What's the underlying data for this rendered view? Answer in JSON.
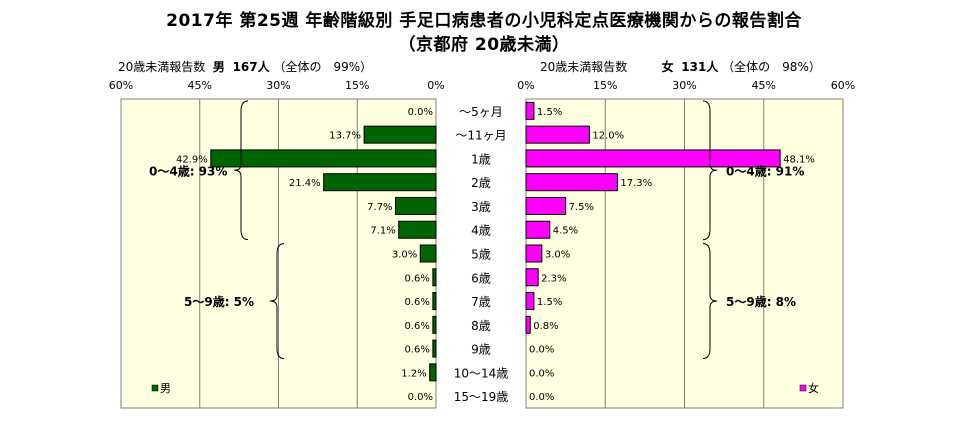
{
  "title": "2017年 第25週 年齢階級別 手足口病患者の小児科定点医療機関からの報告割合",
  "subtitle": "（京都府 20歳未満）",
  "header_left": {
    "prefix": "20歳未満報告数",
    "sex": "男",
    "count": "167人",
    "note": "（全体の　99%）"
  },
  "header_right": {
    "prefix": "20歳未満報告数",
    "sex": "女",
    "count": "131人",
    "note": "（全体の　98%）"
  },
  "chart_data": {
    "type": "bar",
    "orientation": "horizontal-butterfly",
    "categories": [
      "～5ヶ月",
      "～11ヶ月",
      "1歳",
      "2歳",
      "3歳",
      "4歳",
      "5歳",
      "6歳",
      "7歳",
      "8歳",
      "9歳",
      "10～14歳",
      "15～19歳"
    ],
    "xlim": [
      0,
      60
    ],
    "ticks_left": [
      "60%",
      "45%",
      "30%",
      "15%",
      "0%"
    ],
    "ticks_right": [
      "0%",
      "15%",
      "30%",
      "45%",
      "60%"
    ],
    "tick_values": [
      0,
      15,
      30,
      45,
      60
    ],
    "grid": true,
    "series": [
      {
        "name": "男",
        "side": "left",
        "color": "#006400",
        "values": [
          0.0,
          13.7,
          42.9,
          21.4,
          7.7,
          7.1,
          3.0,
          0.6,
          0.6,
          0.6,
          0.6,
          1.2,
          0.0
        ],
        "labels": [
          "0.0%",
          "13.7%",
          "42.9%",
          "21.4%",
          "7.7%",
          "7.1%",
          "3.0%",
          "0.6%",
          "0.6%",
          "0.6%",
          "0.6%",
          "1.2%",
          "0.0%"
        ]
      },
      {
        "name": "女",
        "side": "right",
        "color": "#ff00ff",
        "values": [
          1.5,
          12.0,
          48.1,
          17.3,
          7.5,
          4.5,
          3.0,
          2.3,
          1.5,
          0.8,
          0.0,
          0.0,
          0.0
        ],
        "labels": [
          "1.5%",
          "12.0%",
          "48.1%",
          "17.3%",
          "7.5%",
          "4.5%",
          "3.0%",
          "2.3%",
          "1.5%",
          "0.8%",
          "0.0%",
          "0.0%",
          "0.0%"
        ]
      }
    ],
    "annotations": {
      "left_group1": "0～4歳: 93%",
      "left_group2": "5～9歳: 5%",
      "right_group1": "0～4歳: 91%",
      "right_group2": "5～9歳: 8%"
    },
    "legend": {
      "left": "男",
      "right": "女",
      "placement": "bottom-inside"
    }
  }
}
